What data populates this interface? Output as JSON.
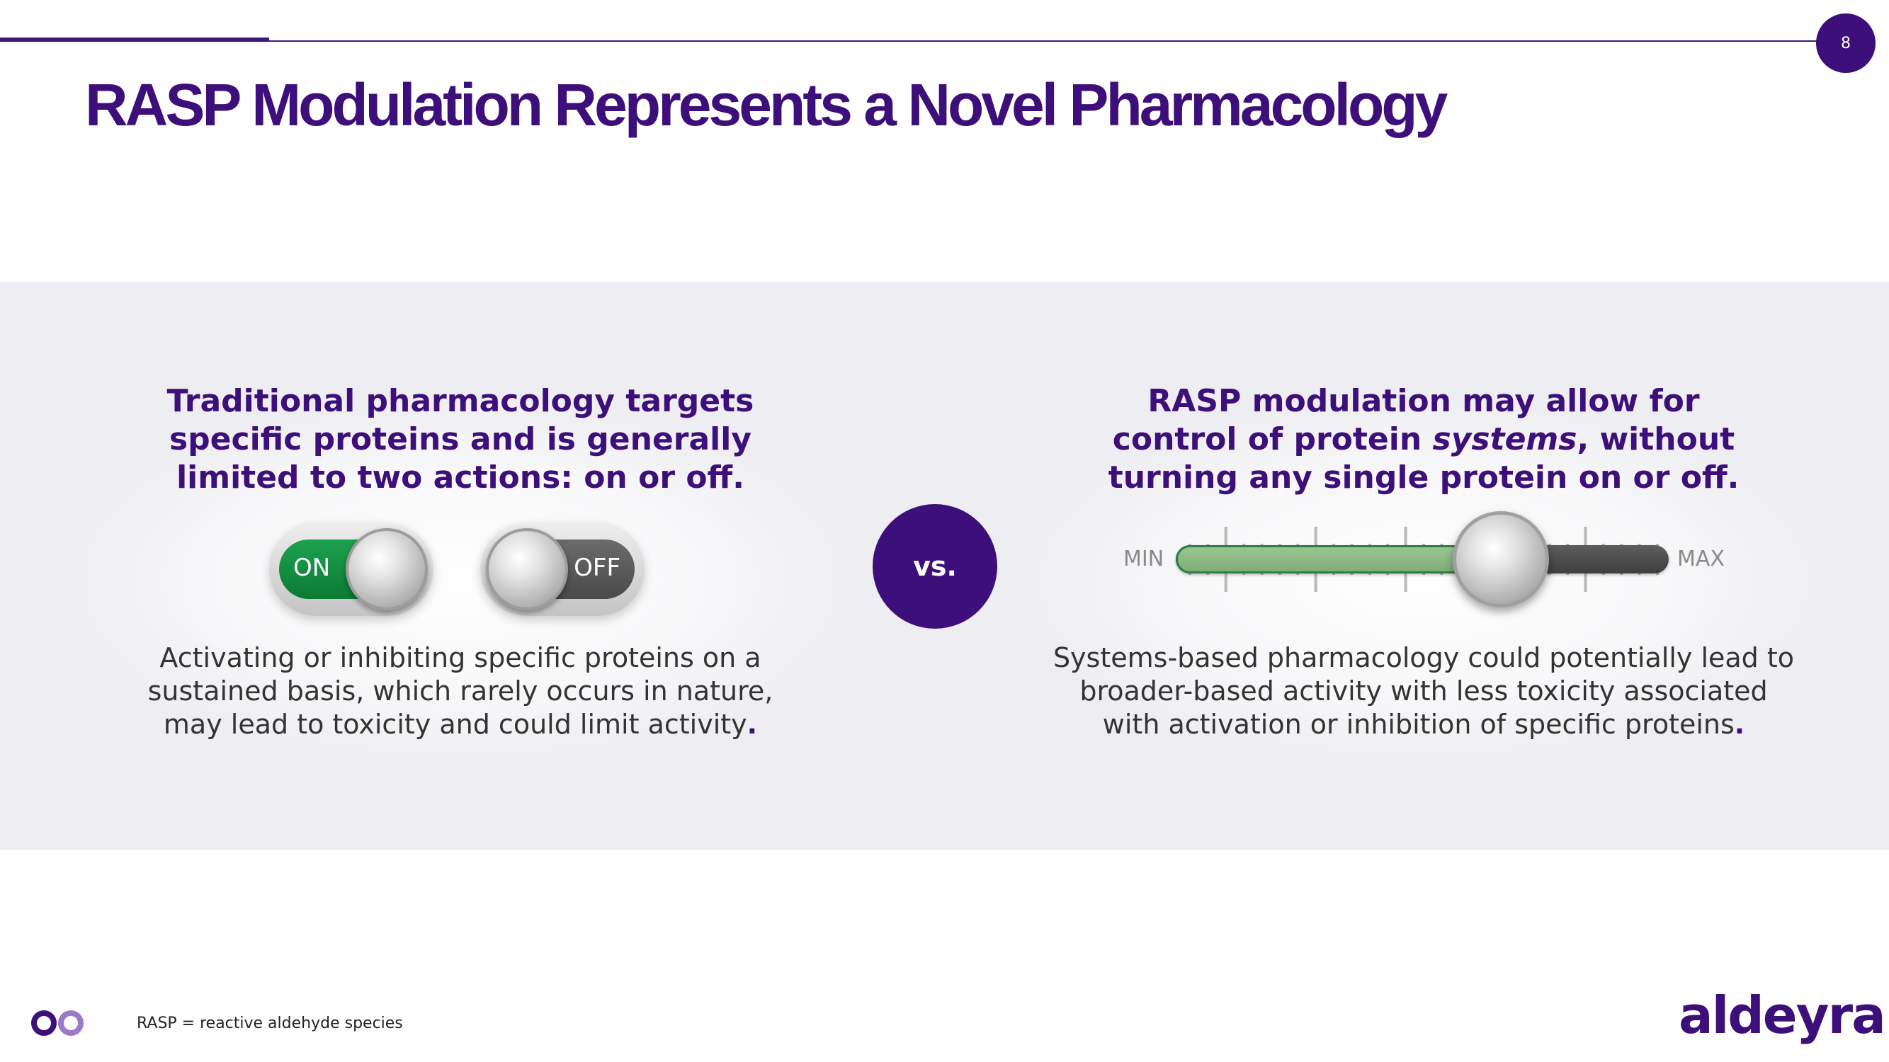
{
  "page": {
    "number": "8"
  },
  "title": "RASP Modulation Represents a Novel Pharmacology",
  "left": {
    "heading": [
      "Traditional pharmacology targets",
      "specific proteins and is generally",
      "limited to two actions: on or off."
    ],
    "toggle_on_label": "ON",
    "toggle_off_label": "OFF",
    "body": [
      "Activating or inhibiting specific proteins on a",
      "sustained basis, which rarely occurs in nature,",
      "may lead to toxicity and could limit activity"
    ],
    "body_end": "."
  },
  "vs_label": "vs.",
  "right": {
    "heading_line1": "RASP modulation may allow for",
    "heading_line2_a": "control of protein ",
    "heading_line2_em": "systems",
    "heading_line2_b": ", without",
    "heading_line3": "turning any single protein on or off.",
    "slider_min_label": "MIN",
    "slider_max_label": "MAX",
    "slider_level": 0.66,
    "body": [
      "Systems-based pharmacology could potentially lead to",
      "broader-based activity with less toxicity associated",
      "with activation or inhibition of specific proteins"
    ],
    "body_end": "."
  },
  "footer": {
    "footnote": "RASP = reactive aldehyde species",
    "brand": "aldeyra"
  },
  "colors": {
    "brand_purple": "#3d0f7a",
    "on_green": "#1da24e",
    "slider_green": "#8fbb87",
    "band_grey": "#eeedf1"
  }
}
